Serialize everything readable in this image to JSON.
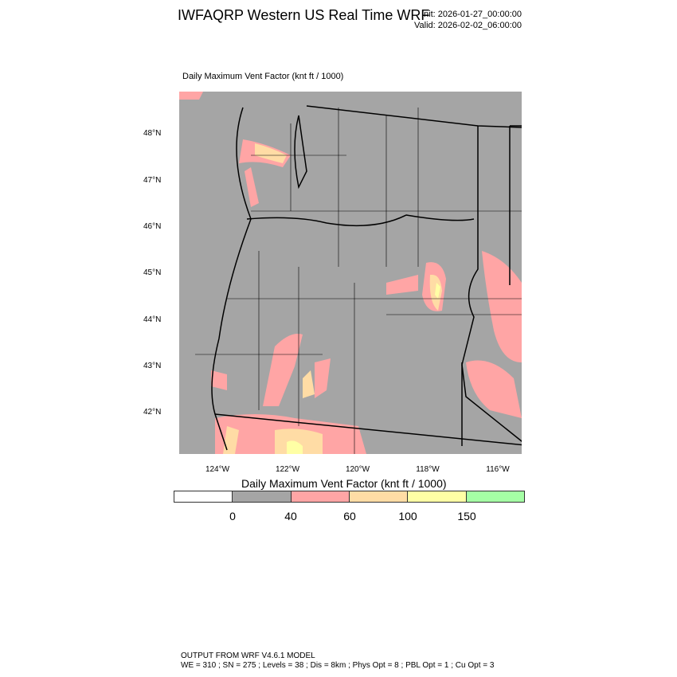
{
  "header": {
    "title": "IWFAQRP Western US Real Time WRF",
    "init": "Init: 2026-01-27_00:00:00",
    "valid": "Valid: 2026-02-02_06:00:00"
  },
  "map": {
    "subtitle": "Daily Maximum Vent Factor   (knt ft / 1000)",
    "lat_labels": [
      "48°N",
      "47°N",
      "46°N",
      "45°N",
      "44°N",
      "43°N",
      "42°N"
    ],
    "lon_labels": [
      "124°W",
      "122°W",
      "120°W",
      "118°W",
      "116°W"
    ],
    "background_color": "#a5a5a5"
  },
  "colorbar": {
    "title": "Daily Maximum Vent Factor  (knt ft / 1000)",
    "colors": [
      "#ffffff",
      "#a5a5a5",
      "#ffa5a5",
      "#ffdca5",
      "#ffffa5",
      "#a5ffa5"
    ],
    "labels": [
      "0",
      "40",
      "60",
      "100",
      "150"
    ]
  },
  "footer": {
    "line1": "OUTPUT FROM WRF V4.6.1 MODEL",
    "line2": "WE = 310 ; SN = 275 ; Levels = 38 ; Dis = 8km ; Phys Opt = 8 ; PBL Opt = 1 ; Cu Opt = 3"
  }
}
